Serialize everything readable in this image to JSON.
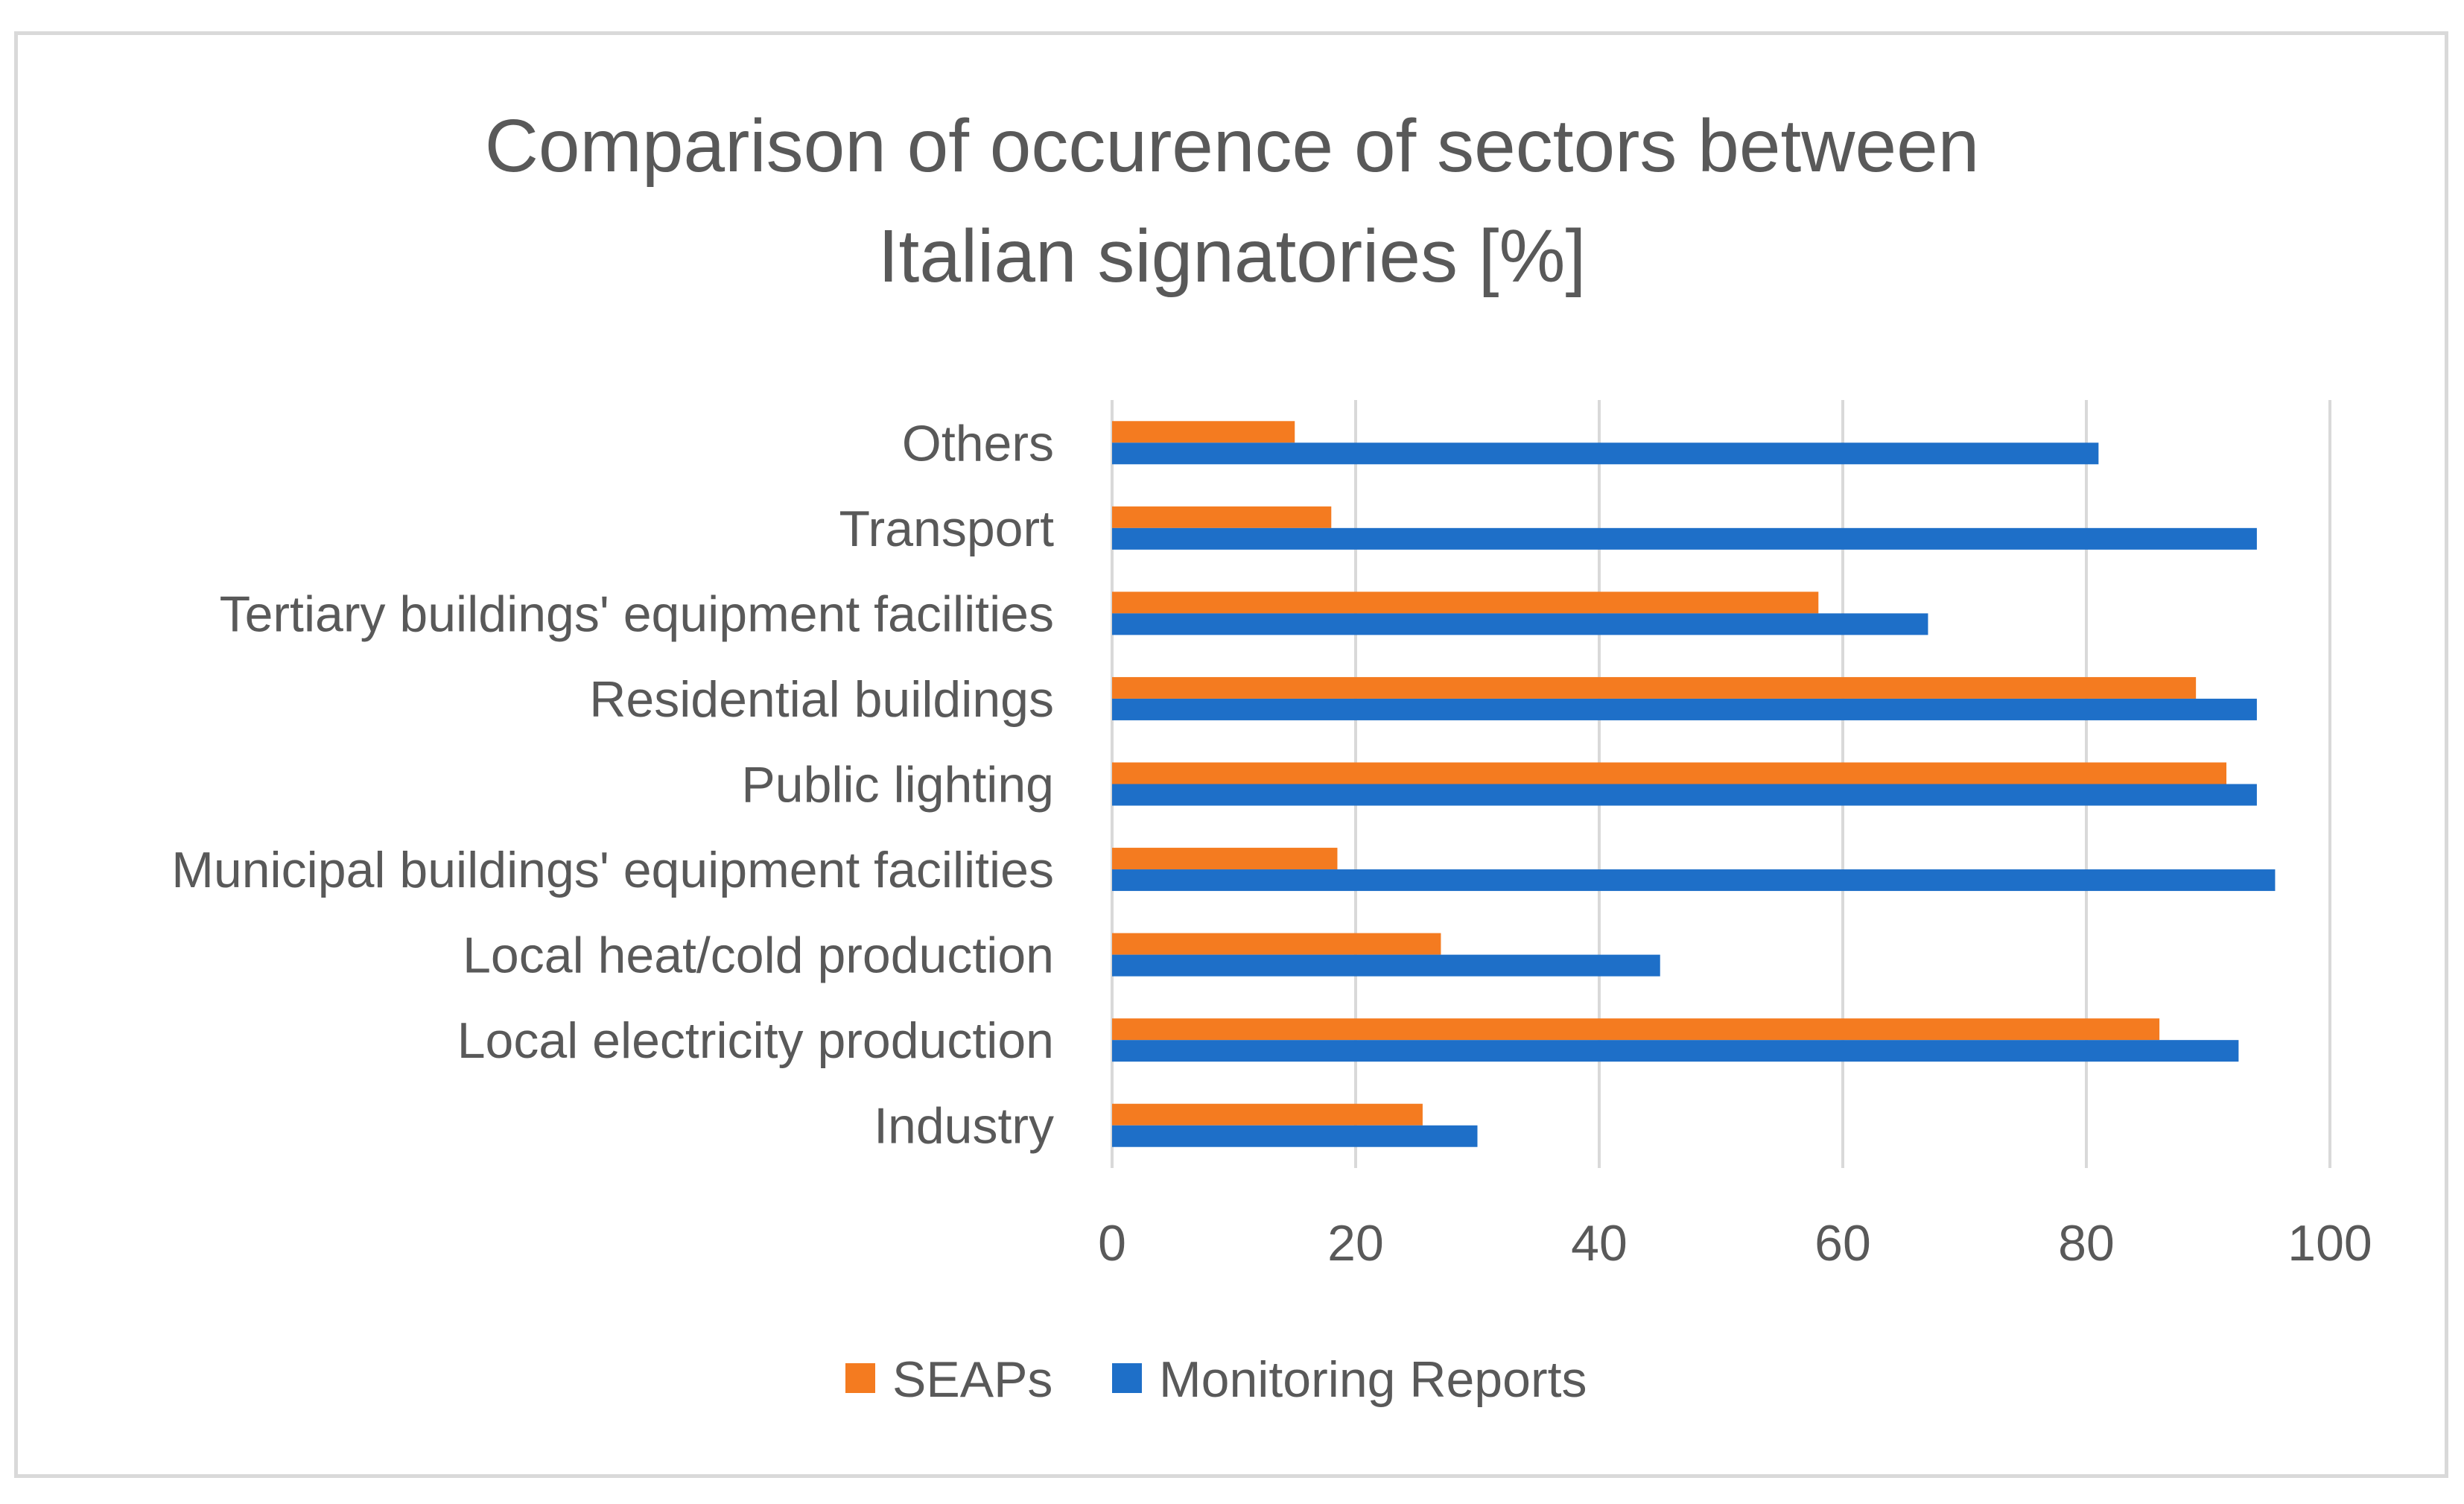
{
  "chart_data": {
    "type": "bar",
    "orientation": "horizontal",
    "title": [
      "Comparison of occurence of sectors between",
      "Italian signatories [%]"
    ],
    "xlabel": "",
    "ylabel": "",
    "xlim": [
      0,
      100
    ],
    "xticks": [
      "0",
      "20",
      "40",
      "60",
      "80",
      "100"
    ],
    "grid": true,
    "legend_position": "bottom",
    "categories": [
      "Others",
      "Transport",
      "Tertiary buildings' equipment facilities",
      "Residential buildings",
      "Public lighting",
      "Municipal buildings' equipment facilities",
      "Local heat/cold production",
      "Local electricity production",
      "Industry"
    ],
    "series": [
      {
        "name": "SEAPs",
        "color": "#F47B20",
        "values": [
          15,
          18,
          58,
          89,
          91.5,
          18.5,
          27,
          86,
          25.5
        ]
      },
      {
        "name": "Monitoring Reports",
        "color": "#1E6FC8",
        "values": [
          81,
          94,
          67,
          94,
          94,
          95.5,
          45,
          92.5,
          30
        ]
      }
    ]
  }
}
